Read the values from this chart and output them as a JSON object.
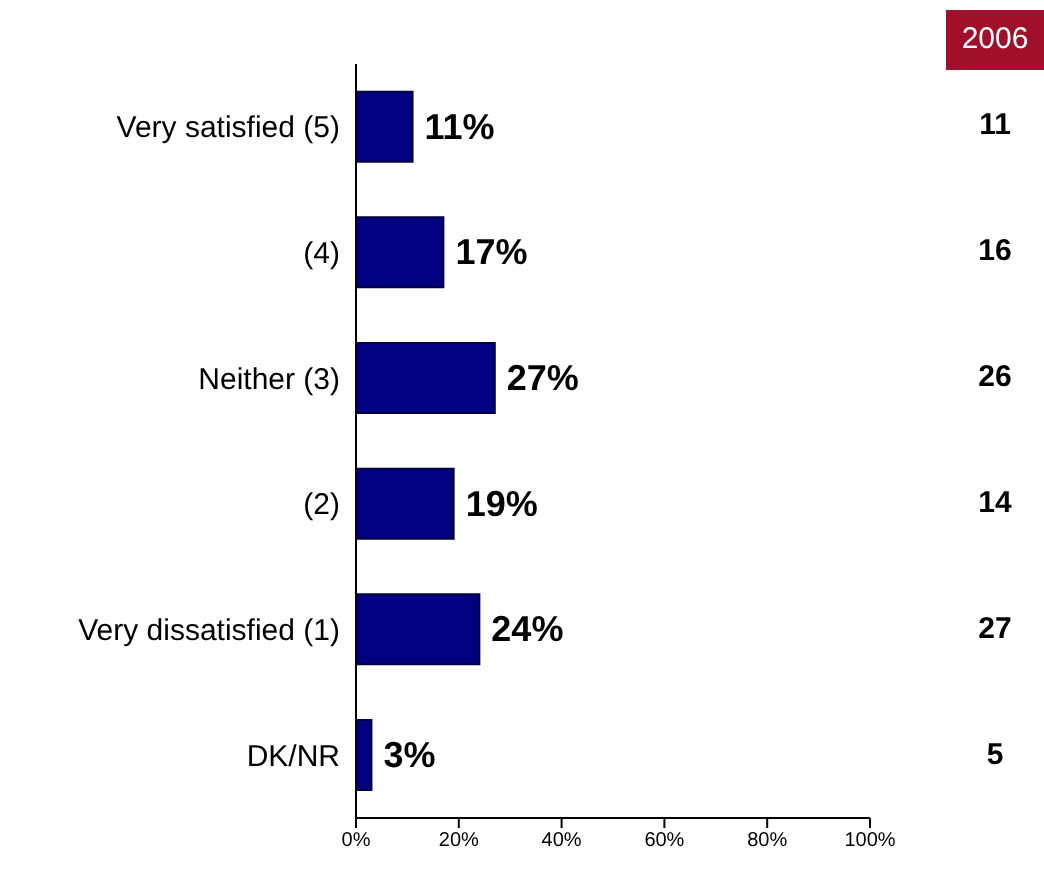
{
  "chart_data": {
    "type": "bar",
    "orientation": "horizontal",
    "categories": [
      "Very satisfied (5)",
      "(4)",
      "Neither (3)",
      "(2)",
      "Very dissatisfied (1)",
      "DK/NR"
    ],
    "values": [
      11,
      17,
      27,
      19,
      24,
      3
    ],
    "value_labels": [
      "11%",
      "17%",
      "27%",
      "19%",
      "24%",
      "3%"
    ],
    "color": "#000080",
    "xlim": [
      0,
      100
    ],
    "xticks": [
      {
        "value": 0,
        "label": "0%"
      },
      {
        "value": 20,
        "label": "20%"
      },
      {
        "value": 40,
        "label": "40%"
      },
      {
        "value": 60,
        "label": "60%"
      },
      {
        "value": 80,
        "label": "80%"
      },
      {
        "value": 100,
        "label": "100%"
      }
    ],
    "grid": false,
    "legend": false,
    "annotations": [
      "2006",
      "11",
      "16",
      "26",
      "14",
      "27",
      "5"
    ]
  }
}
